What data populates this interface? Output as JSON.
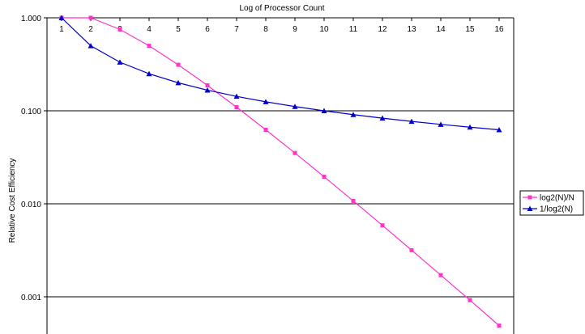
{
  "chart_data": {
    "type": "line",
    "title": "Log of Processor Count",
    "xlabel": "",
    "ylabel": "Relative Cost Efficiency",
    "y_scale": "log",
    "ylim": [
      0.0004,
      1
    ],
    "x_axis_position": "top",
    "x": [
      "1",
      "2",
      "3",
      "4",
      "5",
      "6",
      "7",
      "8",
      "9",
      "10",
      "11",
      "12",
      "13",
      "14",
      "15",
      "16"
    ],
    "y_ticks": [
      "1.000",
      "0.100",
      "0.010",
      "0.001"
    ],
    "grid": true,
    "legend_position": "right",
    "series": [
      {
        "name": "log2(N)/N",
        "marker": "square",
        "color": "#ff33cc",
        "values": [
          1,
          1,
          0.75,
          0.5,
          0.3125,
          0.1875,
          0.109375,
          0.0625,
          0.03516,
          0.01953,
          0.01074,
          0.00586,
          0.00317,
          0.00171,
          0.00092,
          0.00049
        ]
      },
      {
        "name": "1/log2(N)",
        "marker": "triangle",
        "color": "#0000cc",
        "values": [
          1,
          0.5,
          0.3333,
          0.25,
          0.2,
          0.1667,
          0.1429,
          0.125,
          0.1111,
          0.1,
          0.0909,
          0.0833,
          0.0769,
          0.0714,
          0.0667,
          0.0625
        ]
      }
    ]
  }
}
